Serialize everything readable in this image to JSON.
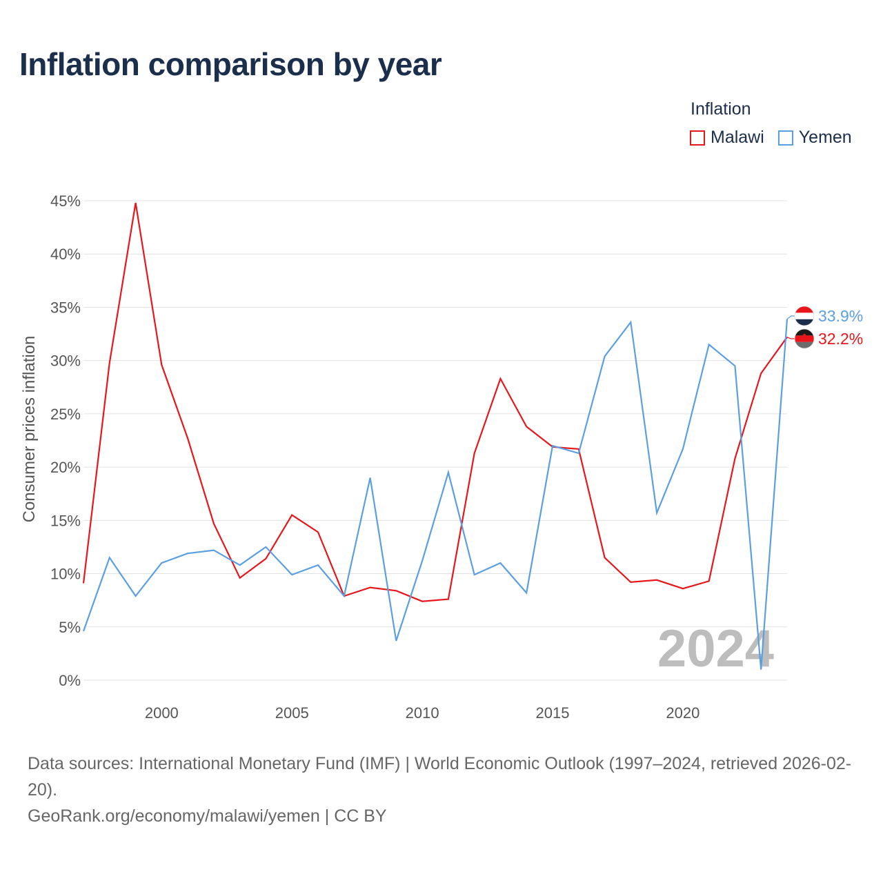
{
  "title": "Inflation comparison by year",
  "legend": {
    "title": "Inflation",
    "items": [
      {
        "label": "Malawi",
        "color": "#e8161b"
      },
      {
        "label": "Yemen",
        "color": "#5b9fe3"
      }
    ]
  },
  "chart_data": {
    "type": "line",
    "ylabel": "Consumer prices inflation",
    "xlabel": "",
    "xlim": [
      1997,
      2024
    ],
    "ylim": [
      0,
      45
    ],
    "x_ticks": [
      2000,
      2005,
      2010,
      2015,
      2020
    ],
    "y_ticks": [
      0,
      5,
      10,
      15,
      20,
      25,
      30,
      35,
      40,
      45
    ],
    "y_tick_labels": [
      "0%",
      "5%",
      "10%",
      "15%",
      "20%",
      "25%",
      "30%",
      "35%",
      "40%",
      "45%"
    ],
    "grid": true,
    "year_watermark": "2024",
    "x": [
      1997,
      1998,
      1999,
      2000,
      2001,
      2002,
      2003,
      2004,
      2005,
      2006,
      2007,
      2008,
      2009,
      2010,
      2011,
      2012,
      2013,
      2014,
      2015,
      2016,
      2017,
      2018,
      2019,
      2020,
      2021,
      2022,
      2023,
      2024
    ],
    "series": [
      {
        "name": "Malawi",
        "color": "#e8161b",
        "end_label": "32.2%",
        "values": [
          9.1,
          29.8,
          44.8,
          29.6,
          22.7,
          14.7,
          9.6,
          11.4,
          15.5,
          13.9,
          7.9,
          8.7,
          8.4,
          7.4,
          7.6,
          21.3,
          28.3,
          23.8,
          21.9,
          21.7,
          11.5,
          9.2,
          9.4,
          8.6,
          9.3,
          20.8,
          28.8,
          32.2
        ]
      },
      {
        "name": "Yemen",
        "color": "#5b9fe3",
        "end_label": "33.9%",
        "values": [
          4.6,
          11.5,
          7.9,
          11.0,
          11.9,
          12.2,
          10.8,
          12.5,
          9.9,
          10.8,
          7.9,
          19.0,
          3.7,
          11.2,
          19.5,
          9.9,
          11.0,
          8.2,
          22.0,
          21.3,
          30.4,
          33.6,
          15.7,
          21.7,
          31.5,
          29.5,
          1.0,
          33.9
        ]
      }
    ]
  },
  "footer": {
    "sources": "Data sources: International Monetary Fund (IMF) | World Economic Outlook (1997–2024, retrieved 2026-02-20).",
    "url": "GeoRank.org/economy/malawi/yemen | CC BY"
  }
}
